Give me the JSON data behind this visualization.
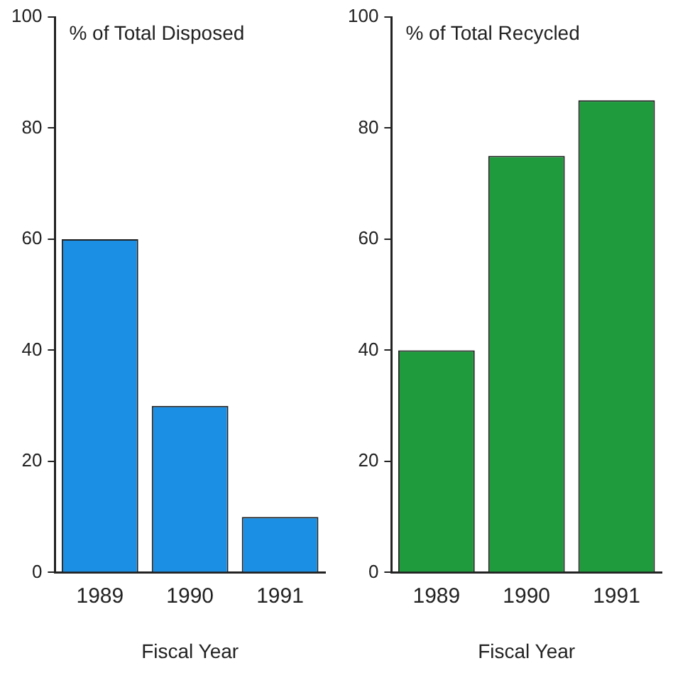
{
  "chart_data": [
    {
      "type": "bar",
      "title": "% of Total Disposed",
      "xlabel": "Fiscal Year",
      "categories": [
        "1989",
        "1990",
        "1991"
      ],
      "values": [
        60,
        30,
        10
      ],
      "color": "#1b8fe3",
      "ylim": [
        0,
        100
      ],
      "yticks": [
        0,
        20,
        40,
        60,
        80,
        100
      ],
      "grid": false,
      "legend": false
    },
    {
      "type": "bar",
      "title": "% of Total Recycled",
      "xlabel": "Fiscal Year",
      "categories": [
        "1989",
        "1990",
        "1991"
      ],
      "values": [
        40,
        75,
        85
      ],
      "color": "#1f9a3c",
      "ylim": [
        0,
        100
      ],
      "yticks": [
        0,
        20,
        40,
        60,
        80,
        100
      ],
      "grid": false,
      "legend": false
    }
  ]
}
